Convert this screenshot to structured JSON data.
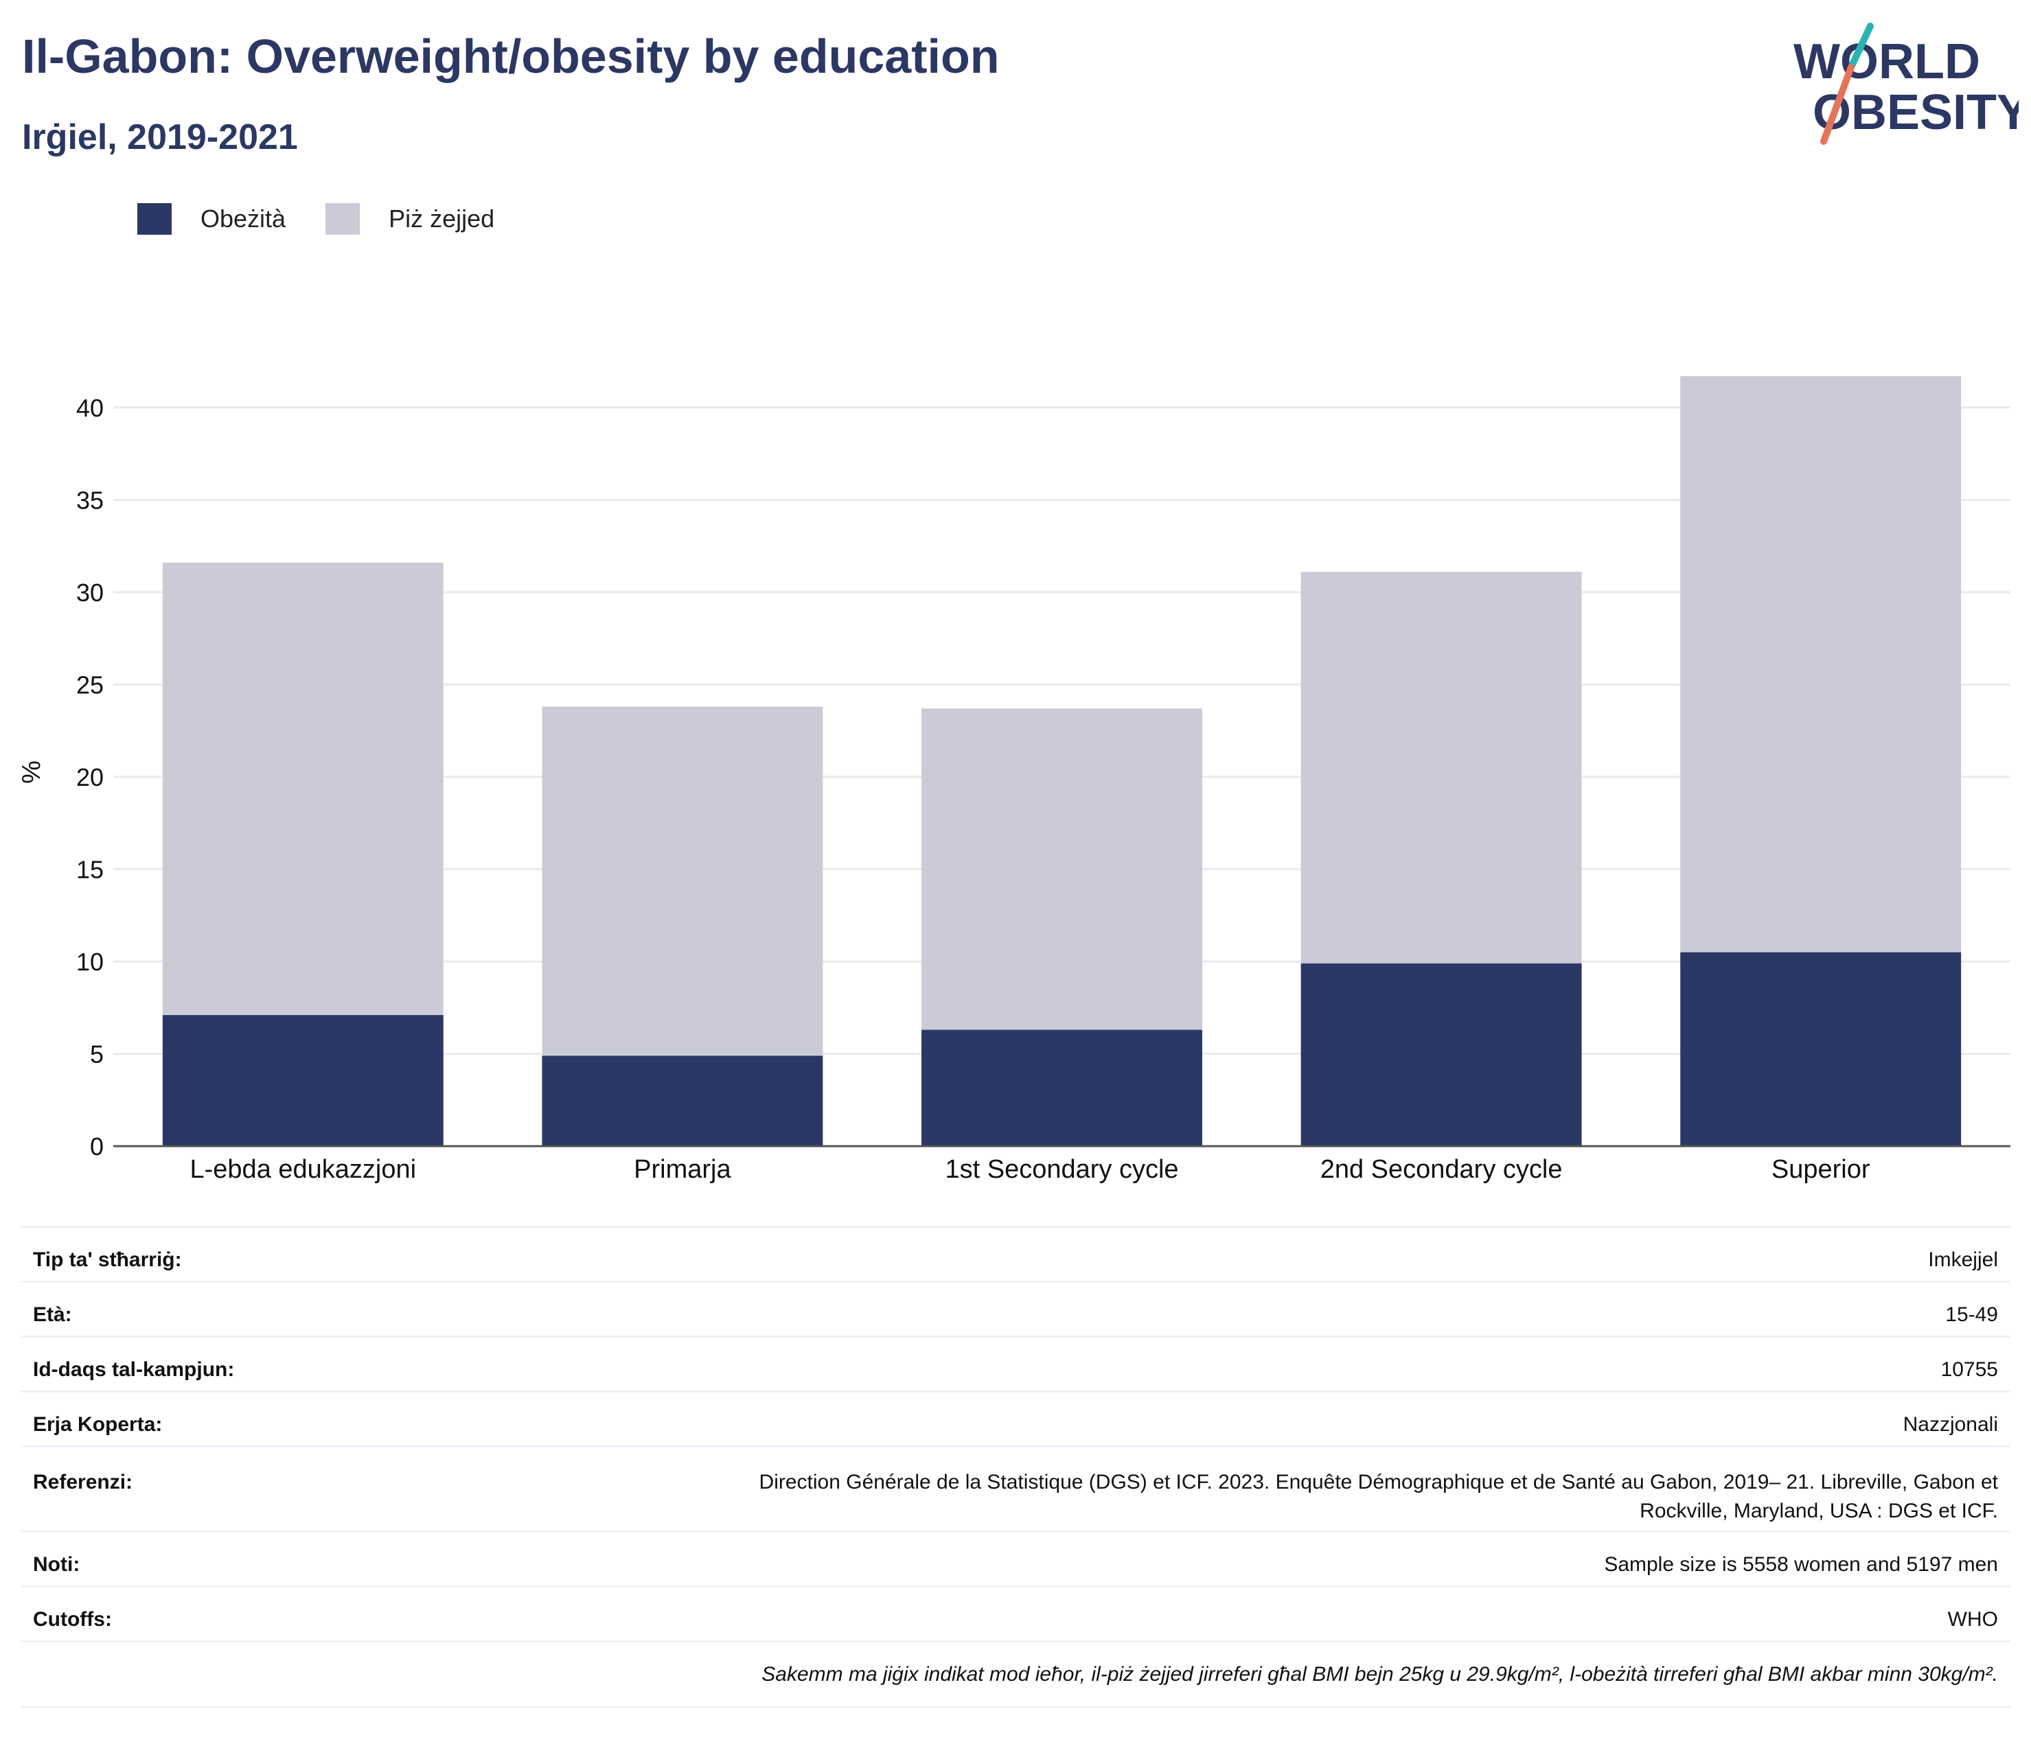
{
  "header": {
    "title": "Il-Gabon: Overweight/obesity by education",
    "subtitle": "Irġiel, 2019-2021"
  },
  "logo": {
    "line1": "WORLD",
    "line2": "OBESITY",
    "accent_teal": "#2ab3b3",
    "accent_coral": "#e5735a",
    "text_color": "#2c3863"
  },
  "legend": {
    "items": [
      {
        "label": "Obeżità",
        "color": "#2b3765"
      },
      {
        "label": "Piż żejjed",
        "color": "#cacbd7"
      }
    ]
  },
  "chart_data": {
    "type": "bar",
    "stacked": true,
    "categories": [
      "L-ebda edukazzjoni",
      "Primarja",
      "1st Secondary cycle",
      "2nd Secondary cycle",
      "Superior"
    ],
    "series": [
      {
        "name": "Obeżità",
        "color": "#2b3765",
        "values": [
          7.1,
          4.9,
          6.3,
          9.9,
          10.5
        ]
      },
      {
        "name": "Piż żejjed",
        "color": "#cacbd7",
        "values": [
          24.5,
          18.9,
          17.4,
          21.2,
          31.2
        ]
      }
    ],
    "ylabel": "%",
    "xlabel": "",
    "ylim": [
      0,
      42
    ],
    "yticks": [
      0,
      5,
      10,
      15,
      20,
      25,
      30,
      35,
      40
    ],
    "grid": true,
    "legend_position": "top-left"
  },
  "info_table": {
    "rows": [
      {
        "key": "Tip ta' stħarriġ:",
        "value": "Imkejjel"
      },
      {
        "key": "Età:",
        "value": "15-49"
      },
      {
        "key": "Id-daqs tal-kampjun:",
        "value": "10755"
      },
      {
        "key": "Erja Koperta:",
        "value": "Nazzjonali"
      },
      {
        "key": "Referenzi:",
        "value_line1": "Direction Générale de la Statistique (DGS) et ICF. 2023. Enquête Démographique et de Santé au Gabon, 2019– 21. Libreville, Gabon et",
        "value_line2": "Rockville, Maryland, USA : DGS et ICF."
      },
      {
        "key": "Noti:",
        "value": "Sample size is 5558 women and 5197 men"
      },
      {
        "key": "Cutoffs:",
        "value": "WHO"
      }
    ],
    "footnote": "Sakemm ma jiġix indikat mod ieħor, il-piż żejjed jirreferi għal BMI bejn 25kg u 29.9kg/m², l-obeżità tirreferi għal BMI akbar minn 30kg/m²."
  }
}
